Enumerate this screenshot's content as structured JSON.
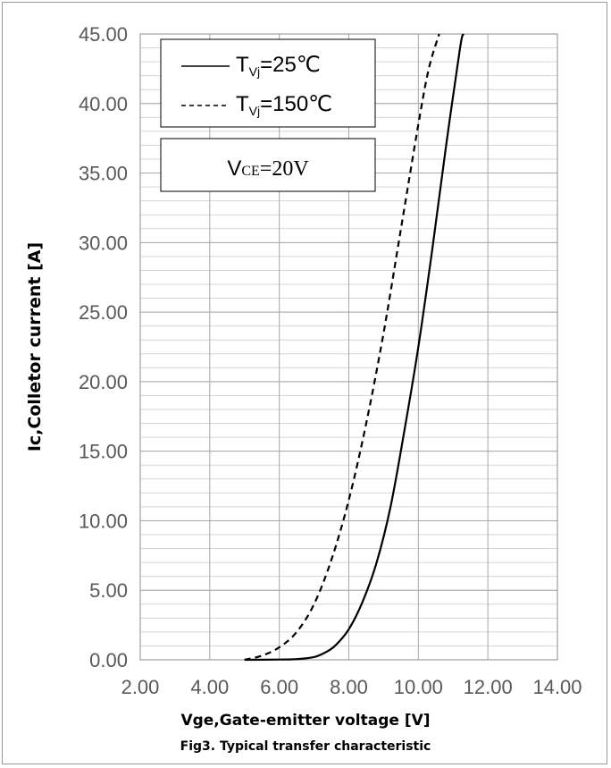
{
  "chart_data": {
    "type": "line",
    "xlabel": "Vge,Gate-emitter voltage [V]",
    "ylabel": "Ic,Colletor current [A]",
    "caption": "Fig3. Typical transfer characteristic",
    "xlim": [
      2,
      14
    ],
    "ylim": [
      0,
      45
    ],
    "x_ticks": [
      "2.00",
      "4.00",
      "6.00",
      "8.00",
      "10.00",
      "12.00",
      "14.00"
    ],
    "y_ticks": [
      "0.00",
      "5.00",
      "10.00",
      "15.00",
      "20.00",
      "25.00",
      "30.00",
      "35.00",
      "40.00",
      "45.00"
    ],
    "x_major_step": 2,
    "y_minor_step": 1,
    "grid": true,
    "legend": {
      "position": "top-left",
      "entries": [
        {
          "prefix": "T",
          "sub": "Vj",
          "suffix": "=25℃",
          "style": "solid"
        },
        {
          "prefix": "T",
          "sub": "Vj",
          "suffix": "=150℃",
          "style": "dashed"
        }
      ],
      "note": {
        "prefix": "V",
        "sub": "CE",
        "suffix": "=20V"
      }
    },
    "series": [
      {
        "style": "solid",
        "color": "#000000",
        "x": [
          5.0,
          6.0,
          6.5,
          7.0,
          7.3,
          7.6,
          8.0,
          8.4,
          8.8,
          9.2,
          9.6,
          10.0,
          10.4,
          10.8,
          11.2,
          11.3
        ],
        "y": [
          0.0,
          0.02,
          0.05,
          0.2,
          0.5,
          1.0,
          2.2,
          4.2,
          7.0,
          11.0,
          16.5,
          22.5,
          29.5,
          37.0,
          44.0,
          45.0
        ]
      },
      {
        "style": "dashed",
        "color": "#000000",
        "x": [
          5.0,
          5.5,
          6.0,
          6.5,
          7.0,
          7.5,
          8.0,
          8.5,
          9.0,
          9.5,
          10.0,
          10.3,
          10.6
        ],
        "y": [
          0.0,
          0.3,
          0.9,
          2.0,
          4.0,
          7.2,
          11.5,
          17.0,
          23.5,
          31.0,
          38.5,
          42.5,
          45.0
        ]
      }
    ]
  }
}
